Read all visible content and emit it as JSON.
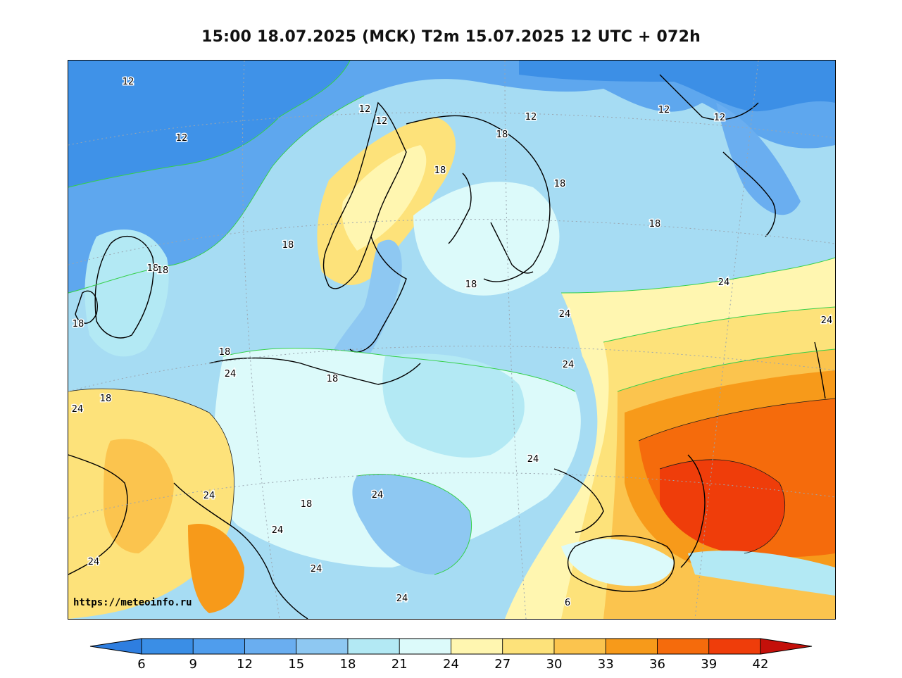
{
  "title": "15:00 18.07.2025 (МСК) T2m 15.07.2025 12 UTC + 072h",
  "source_url": "https://meteoinfo.ru",
  "colorbar": {
    "ticks": [
      "6",
      "9",
      "12",
      "15",
      "18",
      "21",
      "24",
      "27",
      "30",
      "33",
      "36",
      "39",
      "42"
    ],
    "colors": [
      "#3a8ee6",
      "#4f9ded",
      "#6aaef0",
      "#8ec8f2",
      "#b3e9f4",
      "#dcfafa",
      "#fff6b0",
      "#fde27a",
      "#fbc44e",
      "#f79a1a",
      "#f56b0c",
      "#ef3d0a",
      "#d8140a"
    ],
    "under_color": "#2e7ee0",
    "over_color": "#c4100a"
  },
  "contour_labels": [
    "12",
    "12",
    "12",
    "12",
    "12",
    "12",
    "12",
    "18",
    "18",
    "18",
    "18",
    "18",
    "18",
    "18",
    "18",
    "18",
    "18",
    "18",
    "18",
    "18",
    "24",
    "24",
    "24",
    "24",
    "24",
    "24",
    "24",
    "24",
    "24",
    "24",
    "24",
    "24",
    "24",
    "6"
  ]
}
